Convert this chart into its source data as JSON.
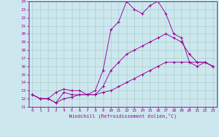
{
  "xlabel": "Windchill (Refroidissement éolien,°C)",
  "background_color": "#cce8ee",
  "grid_color": "#aacccc",
  "line_color": "#990099",
  "xlim": [
    -0.5,
    23.5
  ],
  "ylim": [
    11,
    24
  ],
  "xticks": [
    0,
    1,
    2,
    3,
    4,
    5,
    6,
    7,
    8,
    9,
    10,
    11,
    12,
    13,
    14,
    15,
    16,
    17,
    18,
    19,
    20,
    21,
    22,
    23
  ],
  "yticks": [
    11,
    12,
    13,
    14,
    15,
    16,
    17,
    18,
    19,
    20,
    21,
    22,
    23,
    24
  ],
  "series": [
    {
      "x": [
        0,
        1,
        2,
        3,
        4,
        5,
        6,
        7,
        8,
        9,
        10,
        11,
        12,
        13,
        14,
        15,
        16,
        17,
        18,
        19,
        20,
        21,
        22,
        23
      ],
      "y": [
        12.5,
        12.0,
        12.0,
        11.5,
        12.8,
        12.5,
        12.5,
        12.5,
        13.0,
        15.5,
        20.5,
        21.5,
        24.0,
        23.0,
        22.5,
        23.5,
        24.0,
        22.5,
        20.0,
        19.5,
        16.5,
        16.0,
        16.5,
        16.0
      ]
    },
    {
      "x": [
        0,
        1,
        2,
        3,
        4,
        5,
        6,
        7,
        8,
        9,
        10,
        11,
        12,
        13,
        14,
        15,
        16,
        17,
        18,
        19,
        20,
        21,
        22,
        23
      ],
      "y": [
        12.5,
        12.0,
        12.0,
        12.8,
        13.2,
        13.0,
        13.0,
        12.5,
        12.5,
        13.5,
        15.5,
        16.5,
        17.5,
        18.0,
        18.5,
        19.0,
        19.5,
        20.0,
        19.5,
        19.0,
        17.5,
        16.5,
        16.5,
        16.0
      ]
    },
    {
      "x": [
        0,
        1,
        2,
        3,
        4,
        5,
        6,
        7,
        8,
        9,
        10,
        11,
        12,
        13,
        14,
        15,
        16,
        17,
        18,
        19,
        20,
        21,
        22,
        23
      ],
      "y": [
        12.5,
        12.0,
        12.0,
        11.5,
        12.0,
        12.2,
        12.5,
        12.5,
        12.5,
        12.8,
        13.0,
        13.5,
        14.0,
        14.5,
        15.0,
        15.5,
        16.0,
        16.5,
        16.5,
        16.5,
        16.5,
        16.5,
        16.5,
        16.0
      ]
    }
  ]
}
